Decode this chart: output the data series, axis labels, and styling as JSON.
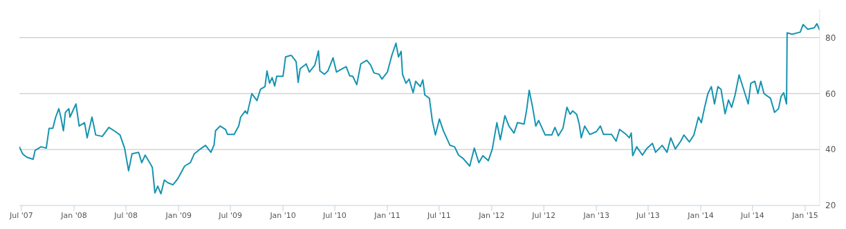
{
  "chart_data": {
    "type": "line",
    "x": [
      "2007-06-24",
      "2007-07-05",
      "2007-07-19",
      "2007-08-11",
      "2007-08-18",
      "2007-09-08",
      "2007-09-26",
      "2007-10-06",
      "2007-10-19",
      "2007-10-29",
      "2007-11-09",
      "2007-11-16",
      "2007-11-25",
      "2007-12-02",
      "2007-12-14",
      "2007-12-18",
      "2008-01-08",
      "2008-01-19",
      "2008-02-07",
      "2008-02-16",
      "2008-03-04",
      "2008-03-17",
      "2008-04-09",
      "2008-05-02",
      "2008-05-25",
      "2008-06-10",
      "2008-06-26",
      "2008-07-10",
      "2008-07-22",
      "2008-08-14",
      "2008-08-25",
      "2008-09-06",
      "2008-09-22",
      "2008-10-01",
      "2008-10-10",
      "2008-10-20",
      "2008-10-31",
      "2008-11-12",
      "2008-11-25",
      "2008-12-12",
      "2008-12-28",
      "2009-01-10",
      "2009-01-22",
      "2009-02-11",
      "2009-02-25",
      "2009-03-18",
      "2009-04-05",
      "2009-04-24",
      "2009-05-05",
      "2009-05-10",
      "2009-05-26",
      "2009-06-14",
      "2009-06-21",
      "2009-07-14",
      "2009-07-30",
      "2009-08-06",
      "2009-08-22",
      "2009-08-29",
      "2009-09-14",
      "2009-10-02",
      "2009-10-14",
      "2009-10-30",
      "2009-11-06",
      "2009-11-15",
      "2009-11-24",
      "2009-12-03",
      "2009-12-10",
      "2010-01-01",
      "2010-01-10",
      "2010-01-26",
      "2010-01-31",
      "2010-02-16",
      "2010-02-23",
      "2010-03-02",
      "2010-03-23",
      "2010-04-03",
      "2010-04-22",
      "2010-05-05",
      "2010-05-10",
      "2010-05-26",
      "2010-06-07",
      "2010-06-25",
      "2010-07-07",
      "2010-07-27",
      "2010-08-10",
      "2010-08-22",
      "2010-09-02",
      "2010-09-16",
      "2010-09-30",
      "2010-10-21",
      "2010-11-04",
      "2010-11-15",
      "2010-12-03",
      "2010-12-13",
      "2011-01-01",
      "2011-01-17",
      "2011-01-31",
      "2011-02-09",
      "2011-02-18",
      "2011-02-23",
      "2011-03-07",
      "2011-03-18",
      "2011-04-01",
      "2011-04-10",
      "2011-04-26",
      "2011-05-05",
      "2011-05-12",
      "2011-05-28",
      "2011-06-07",
      "2011-06-18",
      "2011-07-02",
      "2011-07-16",
      "2011-08-08",
      "2011-08-24",
      "2011-09-07",
      "2011-09-23",
      "2011-10-16",
      "2011-11-01",
      "2011-11-17",
      "2011-12-01",
      "2011-12-20",
      "2012-01-03",
      "2012-01-19",
      "2012-01-31",
      "2012-02-16",
      "2012-03-01",
      "2012-03-19",
      "2012-03-31",
      "2012-04-23",
      "2012-05-02",
      "2012-05-11",
      "2012-05-23",
      "2012-06-03",
      "2012-06-13",
      "2012-07-06",
      "2012-07-29",
      "2012-08-09",
      "2012-08-21",
      "2012-09-06",
      "2012-09-20",
      "2012-10-01",
      "2012-10-10",
      "2012-10-24",
      "2012-11-02",
      "2012-11-09",
      "2012-11-21",
      "2012-12-09",
      "2013-01-01",
      "2013-01-15",
      "2013-01-26",
      "2013-02-23",
      "2013-03-11",
      "2013-03-23",
      "2013-04-15",
      "2013-04-26",
      "2013-05-03",
      "2013-05-08",
      "2013-05-22",
      "2013-06-11",
      "2013-06-25",
      "2013-07-16",
      "2013-07-27",
      "2013-08-19",
      "2013-09-05",
      "2013-09-18",
      "2013-10-04",
      "2013-10-23",
      "2013-11-03",
      "2013-11-22",
      "2013-12-08",
      "2013-12-24",
      "2014-01-03",
      "2014-01-15",
      "2014-01-26",
      "2014-02-07",
      "2014-02-18",
      "2014-03-02",
      "2014-03-13",
      "2014-03-27",
      "2014-04-08",
      "2014-04-19",
      "2014-05-01",
      "2014-05-15",
      "2014-05-28",
      "2014-06-16",
      "2014-06-25",
      "2014-07-09",
      "2014-07-20",
      "2014-07-30",
      "2014-08-10",
      "2014-09-02",
      "2014-09-16",
      "2014-09-30",
      "2014-10-09",
      "2014-10-18",
      "2014-10-28",
      "2014-10-30",
      "2014-11-17",
      "2014-12-15",
      "2014-12-25",
      "2015-01-10",
      "2015-02-02",
      "2015-02-11",
      "2015-02-21"
    ],
    "series": [
      {
        "color": "#1593b0",
        "values": [
          41,
          38.5,
          37.3,
          36.5,
          39.7,
          41,
          40.5,
          47.6,
          47.6,
          51.6,
          54.6,
          51.6,
          46.7,
          53.3,
          54.6,
          51.6,
          56.3,
          48.4,
          49.6,
          44.2,
          51.6,
          45.2,
          44.7,
          47.9,
          46.4,
          45.2,
          40.5,
          32.4,
          38.5,
          39,
          35.3,
          38,
          35.3,
          33.6,
          24.5,
          26.9,
          24.2,
          29.1,
          28.1,
          27.4,
          29.4,
          31.8,
          34.1,
          35.3,
          38.5,
          40.2,
          41.5,
          39,
          41.7,
          46.7,
          48.4,
          47.2,
          45.4,
          45.4,
          48.4,
          51.6,
          53.8,
          52.8,
          60,
          57.5,
          61.5,
          62.5,
          68.1,
          63.7,
          65.7,
          62.7,
          66.2,
          66.2,
          73.1,
          73.6,
          73.6,
          71.4,
          64,
          68.9,
          70.6,
          67.7,
          70.1,
          75.3,
          68.1,
          66.9,
          68.1,
          72.8,
          67.7,
          68.9,
          69.6,
          66.4,
          66.2,
          63.2,
          70.6,
          71.9,
          70.1,
          67.4,
          66.9,
          65.2,
          67.7,
          73.8,
          78,
          73.1,
          75.1,
          66.9,
          63.7,
          65.2,
          60.3,
          64.4,
          62.5,
          64.9,
          59.5,
          58.3,
          50.4,
          45.2,
          50.9,
          46.7,
          41.5,
          41,
          38,
          36.8,
          34.1,
          40.5,
          35.3,
          37.8,
          36,
          40.2,
          49.6,
          43.5,
          52.1,
          48.4,
          45.9,
          49.6,
          49.1,
          54.1,
          61.2,
          55.1,
          48.4,
          50.4,
          45.2,
          45.2,
          47.9,
          44.9,
          47.6,
          55.1,
          52.6,
          53.8,
          52.6,
          49.1,
          44.2,
          48.4,
          45.4,
          46.4,
          48.4,
          45.4,
          45.4,
          43,
          47.2,
          45.4,
          44.2,
          45.9,
          37.8,
          41,
          38,
          40.2,
          42.2,
          39,
          41.5,
          39,
          44.2,
          40.2,
          43,
          45.2,
          42.7,
          45.2,
          51.6,
          49.6,
          55.3,
          60,
          62.5,
          56.3,
          62.5,
          61.5,
          52.8,
          57.7,
          55.1,
          59.5,
          66.7,
          62.5,
          56.3,
          63.7,
          64.4,
          60,
          64.4,
          60,
          58.3,
          53.3,
          54.6,
          59,
          60.3,
          56.3,
          81.7,
          81.2,
          82,
          84.7,
          83,
          83.5,
          85,
          82.7
        ]
      }
    ],
    "xlim": [
      "2007-06-24",
      "2015-02-21"
    ],
    "xticks": [
      {
        "value": "2007-07-01",
        "label": "Jul '07"
      },
      {
        "value": "2008-01-01",
        "label": "Jan '08"
      },
      {
        "value": "2008-07-01",
        "label": "Jul '08"
      },
      {
        "value": "2009-01-01",
        "label": "Jan '09"
      },
      {
        "value": "2009-07-01",
        "label": "Jul '09"
      },
      {
        "value": "2010-01-01",
        "label": "Jan '10"
      },
      {
        "value": "2010-07-01",
        "label": "Jul '10"
      },
      {
        "value": "2011-01-01",
        "label": "Jan '11"
      },
      {
        "value": "2011-07-01",
        "label": "Jul '11"
      },
      {
        "value": "2012-01-01",
        "label": "Jan '12"
      },
      {
        "value": "2012-07-01",
        "label": "Jul '12"
      },
      {
        "value": "2013-01-01",
        "label": "Jan '13"
      },
      {
        "value": "2013-07-01",
        "label": "Jul '13"
      },
      {
        "value": "2014-01-01",
        "label": "Jan '14"
      },
      {
        "value": "2014-07-01",
        "label": "Jul '14"
      },
      {
        "value": "2015-01-01",
        "label": "Jan '15"
      }
    ],
    "ylim": [
      20,
      90
    ],
    "yticks": [
      20,
      40,
      60,
      80
    ],
    "grid": "y",
    "legend": false,
    "marker": "none",
    "line_style": "solid"
  }
}
